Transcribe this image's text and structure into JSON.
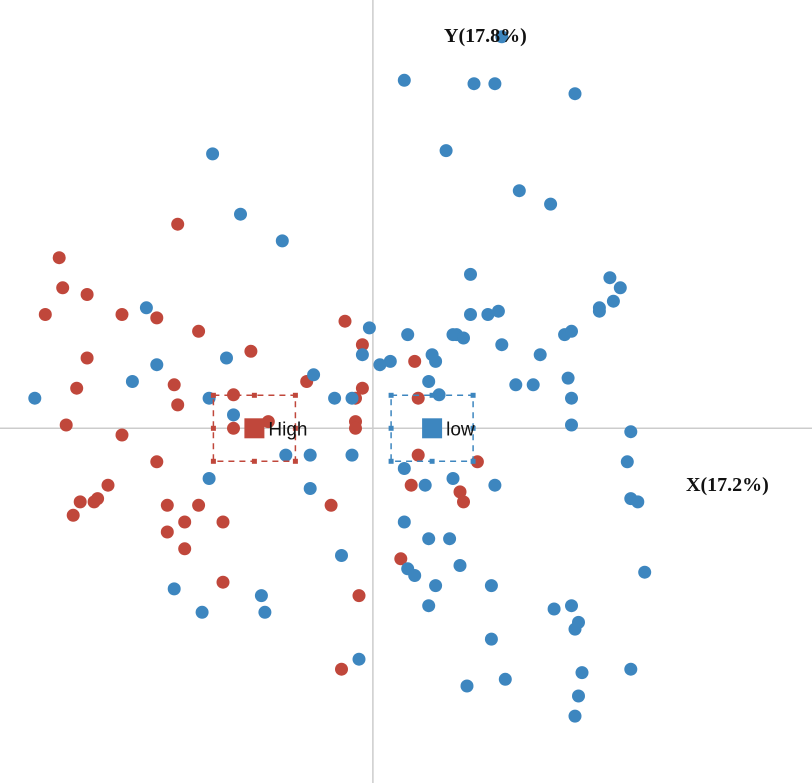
{
  "chart_data": {
    "type": "scatter",
    "xlabel": "X(17.2%)",
    "ylabel": "Y(17.8%)",
    "xlim": [
      -10.7,
      12.6
    ],
    "ylim": [
      -10.6,
      12.8
    ],
    "grid": false,
    "series": [
      {
        "name": "High",
        "color": "#C0473B",
        "centroid": [
          -3.4,
          0.0
        ],
        "points": [
          [
            -9.0,
            5.1
          ],
          [
            -8.9,
            4.2
          ],
          [
            -8.2,
            4.0
          ],
          [
            -9.4,
            3.4
          ],
          [
            -8.2,
            2.1
          ],
          [
            -8.5,
            1.2
          ],
          [
            -8.8,
            0.1
          ],
          [
            -7.2,
            -0.2
          ],
          [
            -5.6,
            6.1
          ],
          [
            -7.2,
            3.4
          ],
          [
            -6.2,
            3.3
          ],
          [
            -5.0,
            2.9
          ],
          [
            -5.7,
            1.3
          ],
          [
            -5.6,
            0.7
          ],
          [
            -6.2,
            -1.0
          ],
          [
            -7.6,
            -1.7
          ],
          [
            -7.9,
            -2.1
          ],
          [
            -8.0,
            -2.2
          ],
          [
            -8.4,
            -2.2
          ],
          [
            -8.6,
            -2.6
          ],
          [
            -5.9,
            -2.3
          ],
          [
            -5.4,
            -2.8
          ],
          [
            -5.0,
            -2.3
          ],
          [
            -4.3,
            -2.8
          ],
          [
            -5.9,
            -3.1
          ],
          [
            -5.4,
            -3.6
          ],
          [
            -4.3,
            -4.6
          ],
          [
            -3.5,
            2.3
          ],
          [
            -1.9,
            1.4
          ],
          [
            -0.8,
            3.2
          ],
          [
            -0.3,
            2.5
          ],
          [
            -0.3,
            1.2
          ],
          [
            -0.5,
            0.9
          ],
          [
            -0.5,
            0.2
          ],
          [
            -4.0,
            1.0
          ],
          [
            -4.0,
            0.0
          ],
          [
            -3.0,
            0.2
          ],
          [
            -1.2,
            -2.3
          ],
          [
            -0.5,
            0.0
          ],
          [
            1.2,
            2.0
          ],
          [
            1.3,
            0.9
          ],
          [
            1.3,
            -0.8
          ],
          [
            1.1,
            -1.7
          ],
          [
            2.5,
            -1.9
          ],
          [
            2.6,
            -2.2
          ],
          [
            3.0,
            -1.0
          ],
          [
            0.8,
            -3.9
          ],
          [
            -0.4,
            -5.0
          ],
          [
            -0.9,
            -7.2
          ]
        ]
      },
      {
        "name": "low",
        "color": "#3D86BF",
        "centroid": [
          1.7,
          0.0
        ],
        "points": [
          [
            -9.7,
            0.9
          ],
          [
            -6.5,
            3.6
          ],
          [
            -6.9,
            1.4
          ],
          [
            -6.2,
            1.9
          ],
          [
            -4.6,
            8.2
          ],
          [
            -3.8,
            6.4
          ],
          [
            -2.6,
            5.6
          ],
          [
            -4.0,
            0.4
          ],
          [
            -4.7,
            0.9
          ],
          [
            -4.2,
            2.1
          ],
          [
            -4.7,
            -1.5
          ],
          [
            -5.7,
            -4.8
          ],
          [
            -4.9,
            -5.5
          ],
          [
            -3.2,
            -5.0
          ],
          [
            -3.1,
            -5.5
          ],
          [
            -2.5,
            -0.8
          ],
          [
            -1.7,
            1.6
          ],
          [
            -1.8,
            -0.8
          ],
          [
            -1.8,
            -1.8
          ],
          [
            -1.1,
            0.9
          ],
          [
            -0.6,
            0.9
          ],
          [
            -0.6,
            -0.8
          ],
          [
            -0.9,
            -3.8
          ],
          [
            -0.4,
            -6.9
          ],
          [
            -0.1,
            3.0
          ],
          [
            -0.3,
            2.2
          ],
          [
            0.5,
            2.0
          ],
          [
            0.2,
            1.9
          ],
          [
            0.9,
            10.4
          ],
          [
            0.9,
            -1.2
          ],
          [
            0.9,
            -2.8
          ],
          [
            1.0,
            -4.2
          ],
          [
            1.2,
            -4.4
          ],
          [
            1.0,
            2.8
          ],
          [
            1.6,
            1.4
          ],
          [
            1.7,
            2.2
          ],
          [
            1.8,
            2.0
          ],
          [
            1.9,
            1.0
          ],
          [
            1.5,
            -1.7
          ],
          [
            1.6,
            -3.3
          ],
          [
            1.6,
            -5.3
          ],
          [
            1.8,
            -4.7
          ],
          [
            2.1,
            8.3
          ],
          [
            2.3,
            -1.5
          ],
          [
            2.2,
            -3.3
          ],
          [
            2.4,
            2.8
          ],
          [
            2.3,
            2.8
          ],
          [
            2.6,
            2.7
          ],
          [
            2.8,
            4.6
          ],
          [
            2.8,
            3.4
          ],
          [
            2.9,
            10.3
          ],
          [
            3.3,
            3.4
          ],
          [
            3.7,
            11.7
          ],
          [
            3.5,
            10.3
          ],
          [
            3.5,
            -1.7
          ],
          [
            2.5,
            -4.1
          ],
          [
            2.7,
            -7.7
          ],
          [
            3.4,
            -4.7
          ],
          [
            3.4,
            -6.3
          ],
          [
            3.6,
            3.5
          ],
          [
            3.7,
            2.5
          ],
          [
            3.8,
            -7.5
          ],
          [
            4.2,
            7.1
          ],
          [
            4.1,
            1.3
          ],
          [
            4.6,
            1.3
          ],
          [
            4.8,
            2.2
          ],
          [
            5.1,
            6.7
          ],
          [
            5.5,
            2.8
          ],
          [
            5.7,
            2.9
          ],
          [
            5.6,
            1.5
          ],
          [
            5.7,
            0.9
          ],
          [
            5.7,
            0.1
          ],
          [
            6.5,
            3.6
          ],
          [
            6.5,
            3.5
          ],
          [
            5.8,
            10.0
          ],
          [
            5.2,
            -5.4
          ],
          [
            5.7,
            -5.3
          ],
          [
            5.9,
            -5.8
          ],
          [
            5.8,
            -6.0
          ],
          [
            6.0,
            -7.3
          ],
          [
            5.9,
            -8.0
          ],
          [
            5.8,
            -8.6
          ],
          [
            7.4,
            -0.1
          ],
          [
            7.3,
            -1.0
          ],
          [
            7.4,
            -2.1
          ],
          [
            7.6,
            -2.2
          ],
          [
            7.8,
            -4.3
          ],
          [
            7.4,
            -7.2
          ],
          [
            7.1,
            4.2
          ],
          [
            6.8,
            4.5
          ],
          [
            6.9,
            3.8
          ]
        ]
      }
    ]
  }
}
